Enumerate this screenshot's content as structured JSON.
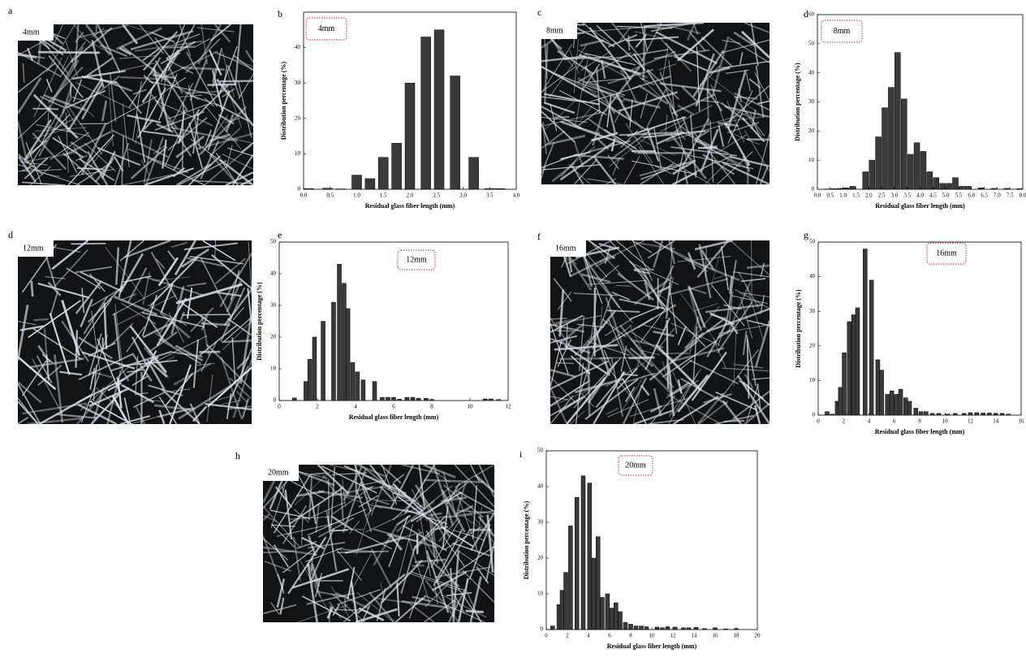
{
  "photos": [
    {
      "panel": "a",
      "label": "4mm"
    },
    {
      "panel": "c",
      "label": "8mm"
    },
    {
      "panel": "d",
      "label": "12mm"
    },
    {
      "panel": "f",
      "label": "16mm"
    },
    {
      "panel": "h",
      "label": "20mm"
    }
  ],
  "chart_data": [
    {
      "type": "bar",
      "panel": "b",
      "annotation": "4mm",
      "x_label": "Residual glass fiber length (mm)",
      "y_label": "Distribution percentage (%)",
      "color": "#3a3a3a",
      "x": [
        0.1,
        0.45,
        0.7,
        1.0,
        1.25,
        1.5,
        1.75,
        2.0,
        2.3,
        2.55,
        2.85,
        3.2,
        3.5,
        3.7
      ],
      "values": [
        0.2,
        0.3,
        0.1,
        4,
        3,
        9,
        13,
        30,
        43,
        45,
        32,
        9,
        0.2,
        0.2
      ],
      "xlim": [
        0,
        4
      ],
      "xticks": [
        {
          "value": 0,
          "label": "0.0"
        },
        0.5,
        {
          "value": 1,
          "label": "1.0"
        },
        1.5,
        {
          "value": 2,
          "label": "2.0"
        },
        2.5,
        {
          "value": 3,
          "label": "3.0"
        },
        3.5,
        {
          "value": 4,
          "label": "4.0"
        }
      ],
      "ylim": [
        0,
        50
      ],
      "yticks": [
        0,
        10,
        20,
        30,
        40
      ]
    },
    {
      "type": "bar",
      "panel": "d",
      "annotation": "8mm",
      "x_label": "Residual glass fiber length (mm)",
      "y_label": "Distribution percentage (%)",
      "color": "#3a3a3a",
      "x": [
        0.125,
        0.375,
        0.625,
        0.875,
        1.125,
        1.375,
        1.875,
        2.125,
        2.375,
        2.625,
        2.875,
        3.125,
        3.375,
        3.625,
        3.875,
        4.125,
        4.375,
        4.625,
        4.875,
        5.125,
        5.375,
        5.625,
        5.875,
        6.375,
        6.875,
        7.375,
        7.875
      ],
      "values": [
        0,
        0.1,
        0.2,
        0.3,
        0.5,
        1,
        6,
        10,
        18,
        28,
        35,
        47,
        31,
        12,
        16,
        13,
        6,
        4,
        2,
        2,
        4,
        1,
        1,
        0.5,
        0.3,
        0.3,
        0.2
      ],
      "xlim": [
        0,
        8
      ],
      "xticks": [
        {
          "value": 0,
          "label": "0.0"
        },
        0.5,
        {
          "value": 1,
          "label": "1.0"
        },
        1.5,
        {
          "value": 2,
          "label": "2.0"
        },
        2.5,
        {
          "value": 3,
          "label": "3.0"
        },
        3.5,
        {
          "value": 4,
          "label": "4.0"
        },
        4.5,
        {
          "value": 5,
          "label": "5.0"
        },
        5.5,
        {
          "value": 6,
          "label": "6.0"
        },
        6.5,
        {
          "value": 7,
          "label": "7.0"
        },
        7.5,
        {
          "value": 8,
          "label": "8.0"
        }
      ],
      "ylim": [
        0,
        60
      ],
      "yticks": [
        0,
        10,
        20,
        30,
        40,
        50,
        60
      ]
    },
    {
      "type": "bar",
      "panel": "e",
      "annotation": "12mm",
      "x_label": "Residual glass fiber length (mm)",
      "y_label": "Distribution percentage (%)",
      "color": "#3a3a3a",
      "x": [
        0.4,
        0.8,
        1.4,
        1.6,
        1.85,
        2.3,
        2.85,
        3.15,
        3.4,
        3.6,
        3.85,
        4.1,
        4.4,
        5.0,
        5.4,
        5.7,
        6.0,
        6.3,
        6.7,
        7.0,
        7.3,
        7.7,
        8.0,
        10.8,
        11.1,
        11.5
      ],
      "values": [
        0,
        0.8,
        6,
        13,
        20,
        25,
        31,
        43,
        37,
        29,
        12,
        9,
        6.5,
        6,
        1,
        1,
        1,
        0.4,
        1,
        1,
        0.7,
        0.7,
        0.3,
        0.5,
        0.5,
        0.3
      ],
      "xlim": [
        0,
        12
      ],
      "xticks": [
        0,
        2,
        4,
        6,
        8,
        10,
        12
      ],
      "ylim": [
        0,
        50
      ],
      "yticks": [
        0,
        10,
        20,
        30,
        40,
        50
      ]
    },
    {
      "type": "bar",
      "panel": "g",
      "annotation": "16mm",
      "x_label": "Residual glass fiber length (mm)",
      "y_label": "Distribution percentage (%)",
      "color": "#3a3a3a",
      "x": [
        0.7,
        1.1,
        1.5,
        1.75,
        2.05,
        2.45,
        2.8,
        3.1,
        3.7,
        4.2,
        4.7,
        5.0,
        5.45,
        5.8,
        6.15,
        6.5,
        6.9,
        7.2,
        7.7,
        8.1,
        8.5,
        9.0,
        9.5,
        10.2,
        10.8,
        11.5,
        12.0,
        12.5,
        13.0,
        13.5,
        14.0,
        14.5,
        15.0
      ],
      "values": [
        1,
        0.3,
        4,
        8,
        18,
        27,
        29,
        31,
        48,
        39,
        16,
        13,
        6,
        7,
        6,
        7.5,
        5,
        4,
        2,
        1,
        1,
        0.5,
        0.5,
        0.3,
        0.5,
        0.5,
        0.7,
        0.7,
        0.6,
        0.6,
        0.5,
        0.5,
        0.3
      ],
      "xlim": [
        0,
        16
      ],
      "xticks": [
        0,
        2,
        4,
        6,
        8,
        10,
        12,
        14,
        16
      ],
      "ylim": [
        0,
        50
      ],
      "yticks": [
        0,
        10,
        20,
        30,
        40,
        50
      ]
    },
    {
      "type": "bar",
      "panel": "i",
      "annotation": "20mm",
      "x_label": "Residual glass fiber length (mm)",
      "y_label": "Distribution percentage (%)",
      "color": "#3a3a3a",
      "x": [
        0.6,
        1.2,
        1.5,
        1.85,
        2.3,
        2.9,
        3.5,
        4.1,
        4.5,
        4.9,
        5.3,
        5.8,
        6.2,
        6.6,
        7.0,
        7.5,
        8.0,
        8.5,
        9.0,
        9.5,
        10.5,
        11.0,
        11.5,
        12.2,
        13.0,
        13.5,
        14.2,
        15.0,
        16.0,
        17.0,
        18.0
      ],
      "values": [
        1,
        7,
        11,
        16,
        29,
        37,
        43,
        41,
        20,
        26,
        9,
        10,
        6,
        7.5,
        5,
        2,
        1.5,
        1,
        1,
        0.8,
        0.7,
        0.5,
        0.8,
        0.7,
        0.5,
        0.5,
        0.6,
        0.3,
        0.5,
        0.2,
        0.3
      ],
      "xlim": [
        0,
        20
      ],
      "xticks": [
        0,
        2,
        4,
        6,
        8,
        10,
        12,
        14,
        16,
        18,
        20
      ],
      "ylim": [
        0,
        50
      ],
      "yticks": [
        0,
        10,
        20,
        30,
        40,
        50
      ]
    }
  ]
}
